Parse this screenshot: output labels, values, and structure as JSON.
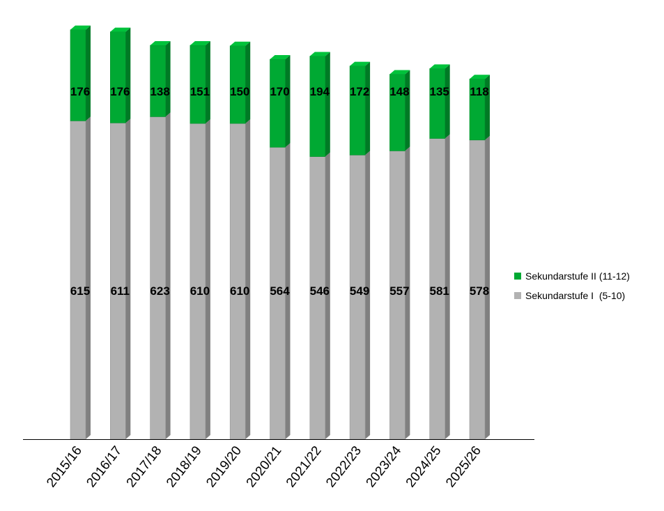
{
  "chart_data": {
    "type": "bar",
    "stacked": true,
    "categories": [
      "2015/16",
      "2016/17",
      "2017/18",
      "2018/19",
      "2019/20",
      "2020/21",
      "2021/22",
      "2022/23",
      "2023/24",
      "2024/25",
      "2025/26"
    ],
    "series": [
      {
        "name": "Sekundarstufe I  (5-10)",
        "color": "#b2b2b2",
        "values": [
          615,
          611,
          623,
          610,
          610,
          564,
          546,
          549,
          557,
          581,
          578
        ]
      },
      {
        "name": "Sekundarstufe II (11-12)",
        "color": "#00a933",
        "values": [
          176,
          176,
          138,
          151,
          150,
          170,
          194,
          172,
          148,
          135,
          118
        ]
      }
    ],
    "legend_position": "right",
    "legend_order": [
      1,
      0
    ],
    "grid": false,
    "ylim": [
      0,
      800
    ]
  }
}
